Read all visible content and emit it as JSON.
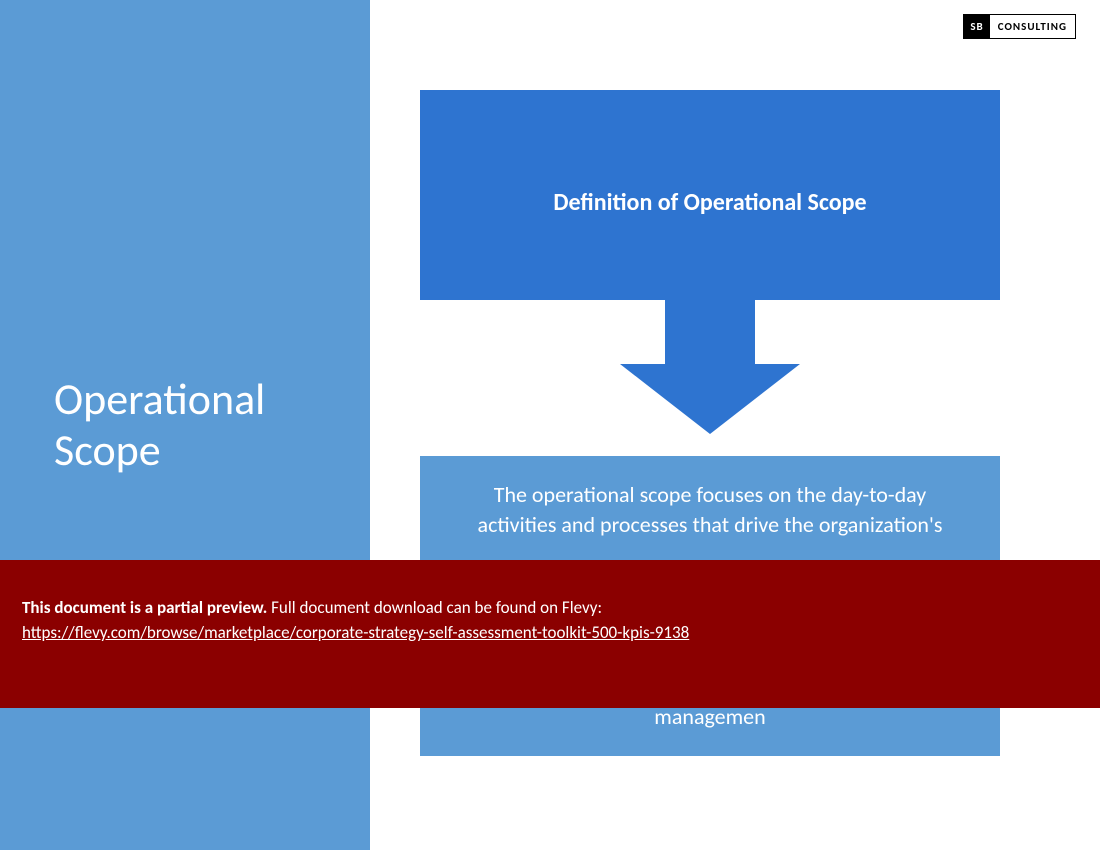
{
  "colors": {
    "leftPanel": "#5b9bd5",
    "defBox": "#2e74d0",
    "arrow": "#2e74d0",
    "bodyBox": "#5b9bd5",
    "overlay": "#8b0000",
    "white": "#ffffff"
  },
  "logo": {
    "left": "SB",
    "right": "CONSULTING"
  },
  "leftTitle": "Operational\nScope",
  "definitionTitle": "Definition of Operational Scope",
  "bodyTextTop": "The operational scope focuses on the day-to-day activities and processes that drive the organization's",
  "bodyTextBottom": "managemen",
  "overlay": {
    "lead": "This document is a partial preview.",
    "rest": "  Full document download can be found on Flevy:",
    "url": "https://flevy.com/browse/marketplace/corporate-strategy-self-assessment-toolkit-500-kpis-9138"
  }
}
